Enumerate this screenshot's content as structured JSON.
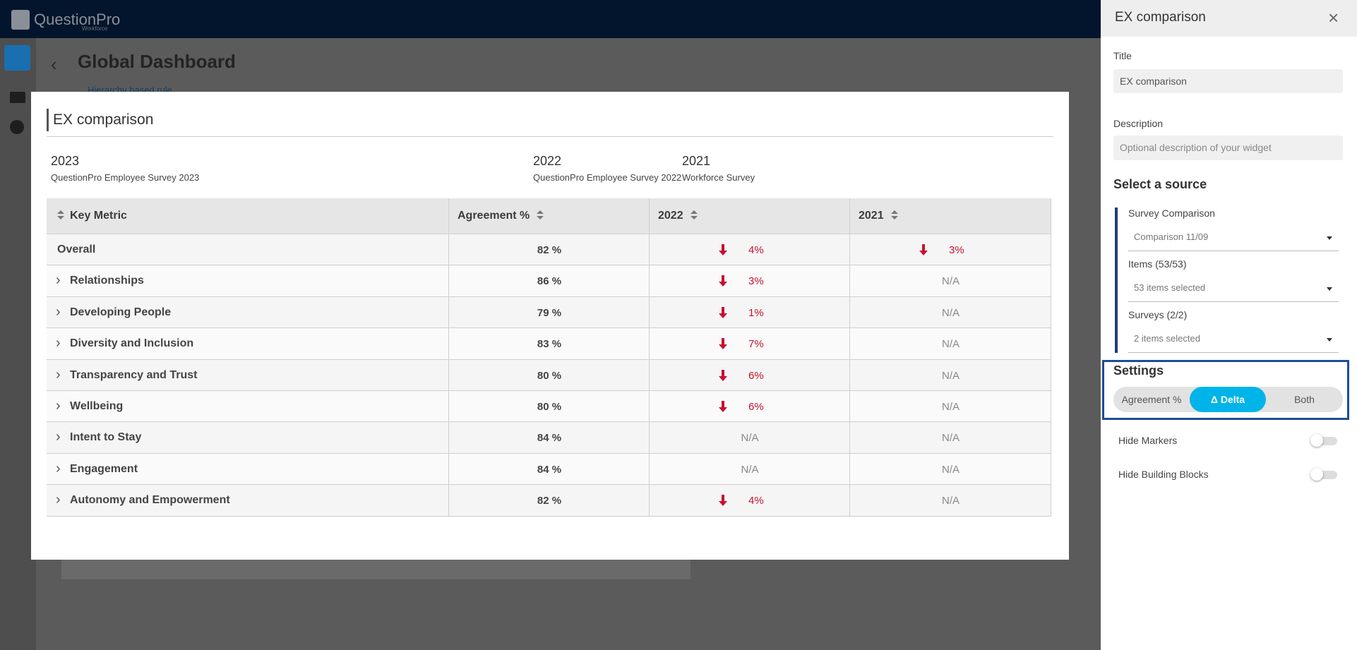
{
  "app": {
    "logo": "QuestionPro",
    "logo_sub": "Workforce",
    "page_title": "Global Dashboard",
    "rule_link": "Hierarchy based rule"
  },
  "modal": {
    "title": "EX comparison",
    "columns": [
      {
        "year": "2023",
        "survey": "QuestionPro Employee Survey 2023"
      },
      {
        "year": "2022",
        "survey": "QuestionPro Employee Survey 2022"
      },
      {
        "year": "2021",
        "survey": "Workforce Survey"
      }
    ],
    "table": {
      "headers": [
        "Key Metric",
        "Agreement %",
        "2022",
        "2021"
      ],
      "rows": [
        {
          "name": "Overall",
          "expandable": false,
          "agreement": "82 %",
          "d2022": {
            "text": "4%",
            "arrow": "down"
          },
          "d2021": {
            "text": "3%",
            "arrow": "down"
          }
        },
        {
          "name": "Relationships",
          "expandable": true,
          "agreement": "86 %",
          "d2022": {
            "text": "3%",
            "arrow": "down"
          },
          "d2021": {
            "text": "N/A"
          }
        },
        {
          "name": "Developing People",
          "expandable": true,
          "agreement": "79 %",
          "d2022": {
            "text": "1%",
            "arrow": "down"
          },
          "d2021": {
            "text": "N/A"
          }
        },
        {
          "name": "Diversity and Inclusion",
          "expandable": true,
          "agreement": "83 %",
          "d2022": {
            "text": "7%",
            "arrow": "down"
          },
          "d2021": {
            "text": "N/A"
          }
        },
        {
          "name": "Transparency and Trust",
          "expandable": true,
          "agreement": "80 %",
          "d2022": {
            "text": "6%",
            "arrow": "down"
          },
          "d2021": {
            "text": "N/A"
          }
        },
        {
          "name": "Wellbeing",
          "expandable": true,
          "agreement": "80 %",
          "d2022": {
            "text": "6%",
            "arrow": "down"
          },
          "d2021": {
            "text": "N/A"
          }
        },
        {
          "name": "Intent to Stay",
          "expandable": true,
          "agreement": "84 %",
          "d2022": {
            "text": "N/A"
          },
          "d2021": {
            "text": "N/A"
          }
        },
        {
          "name": "Engagement",
          "expandable": true,
          "agreement": "84 %",
          "d2022": {
            "text": "N/A"
          },
          "d2021": {
            "text": "N/A"
          }
        },
        {
          "name": "Autonomy and Empowerment",
          "expandable": true,
          "agreement": "82 %",
          "d2022": {
            "text": "4%",
            "arrow": "down"
          },
          "d2021": {
            "text": "N/A"
          }
        }
      ]
    }
  },
  "panel": {
    "title": "EX comparison",
    "title_label": "Title",
    "title_value": "EX comparison",
    "description_label": "Description",
    "description_placeholder": "Optional description of your widget",
    "source_heading": "Select a source",
    "fields": [
      {
        "label": "Survey Comparison",
        "value": "Comparison 11/09"
      },
      {
        "label": "Items (53/53)",
        "value": "53 items selected"
      },
      {
        "label": "Surveys (2/2)",
        "value": "2 items selected"
      }
    ],
    "settings_heading": "Settings",
    "segments": [
      "Agreement %",
      "Δ Delta",
      "Both"
    ],
    "active_segment": 1,
    "toggles": [
      {
        "label": "Hide Markers",
        "on": false
      },
      {
        "label": "Hide Building Blocks",
        "on": false
      }
    ]
  }
}
